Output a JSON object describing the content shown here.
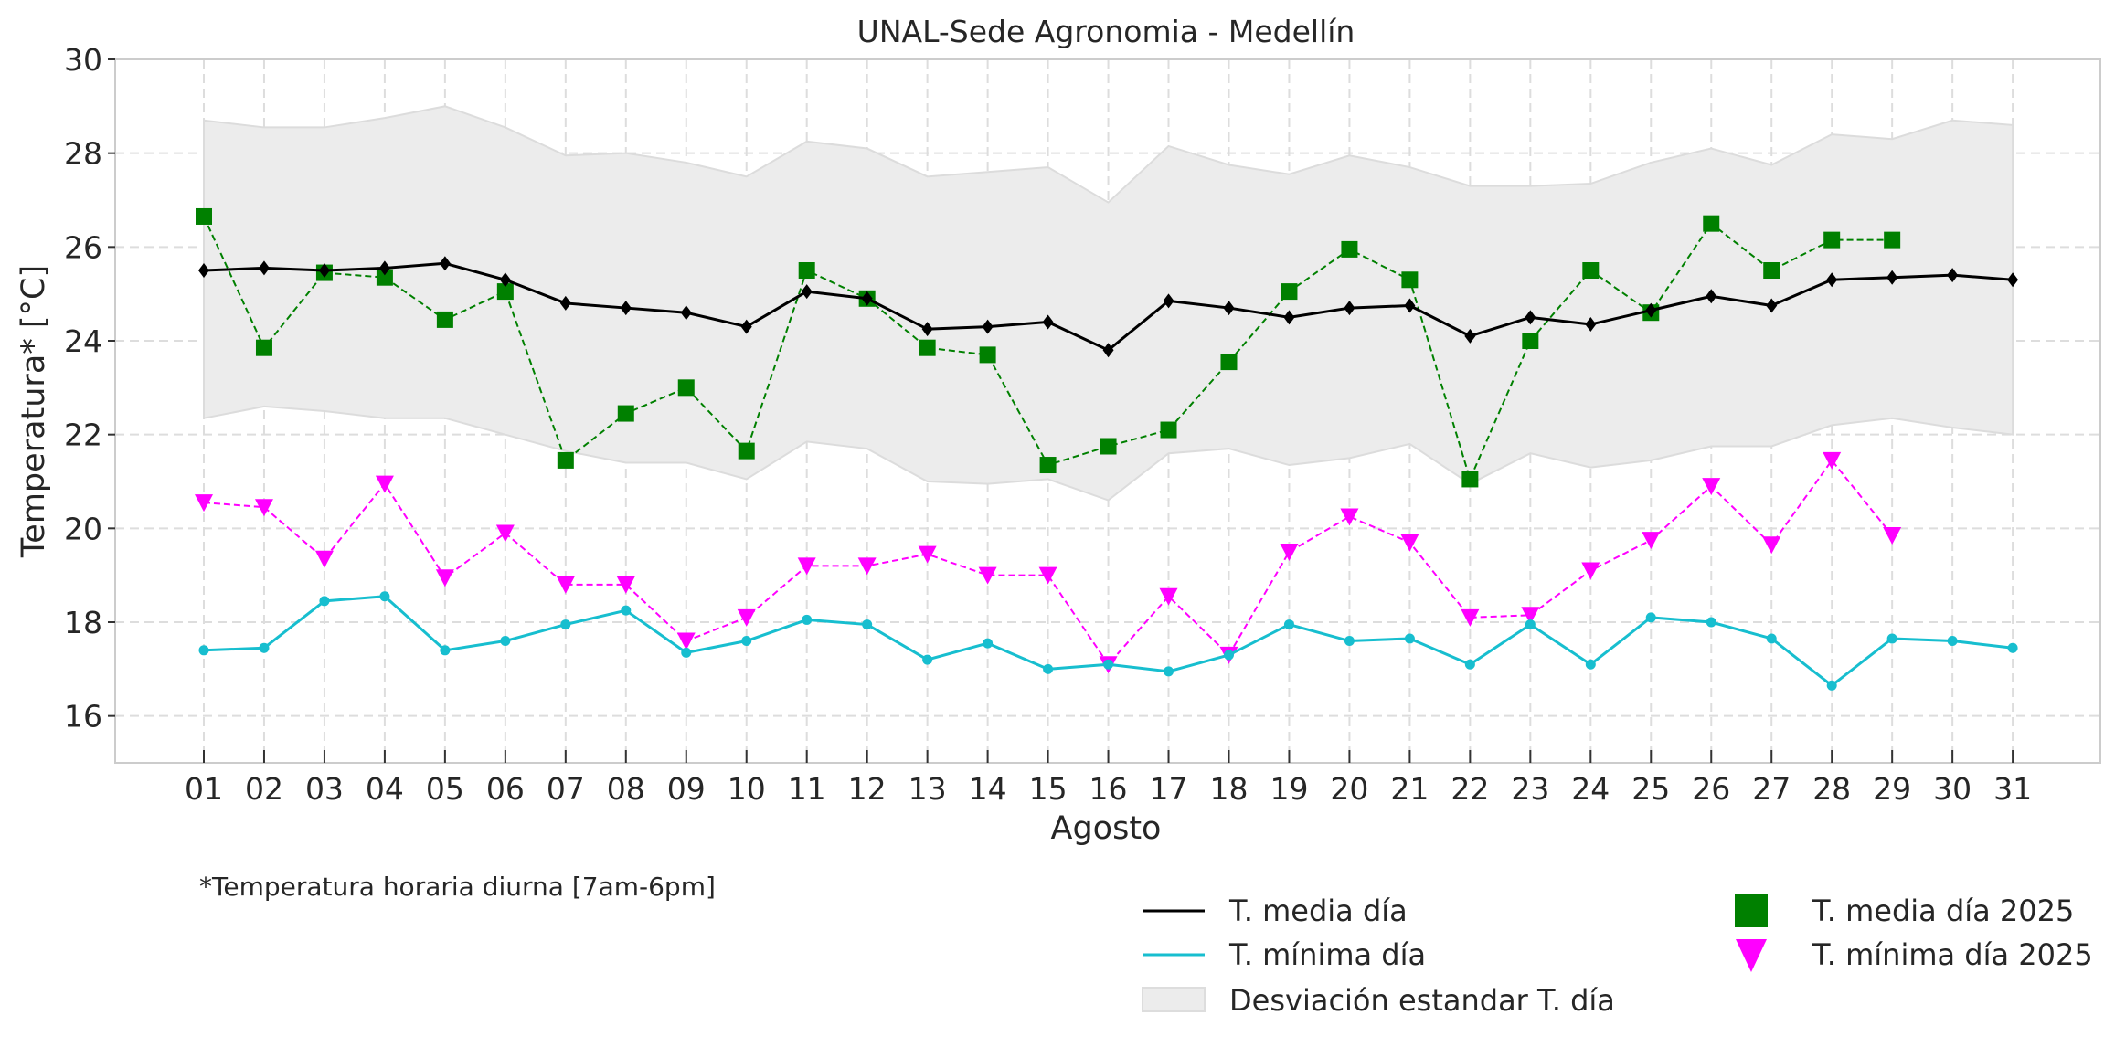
{
  "chart_data": {
    "type": "line",
    "title": "UNAL-Sede Agronomia - Medellín",
    "xlabel": "Agosto",
    "ylabel": "Temperatura* [°C]",
    "ylim": [
      15,
      30
    ],
    "yticks": [
      16,
      18,
      20,
      22,
      24,
      26,
      28,
      30
    ],
    "grid": true,
    "footnote": "*Temperatura horaria diurna [7am-6pm]",
    "categories": [
      "01",
      "02",
      "03",
      "04",
      "05",
      "06",
      "07",
      "08",
      "09",
      "10",
      "11",
      "12",
      "13",
      "14",
      "15",
      "16",
      "17",
      "18",
      "19",
      "20",
      "21",
      "22",
      "23",
      "24",
      "25",
      "26",
      "27",
      "28",
      "29",
      "30",
      "31"
    ],
    "band": {
      "name": "Desviación estandar T. día",
      "color": "#ececec",
      "upper": [
        28.7,
        28.55,
        28.55,
        28.75,
        29.0,
        28.55,
        27.95,
        28.0,
        27.8,
        27.5,
        28.25,
        28.1,
        27.5,
        27.6,
        27.7,
        26.95,
        28.15,
        27.75,
        27.55,
        27.95,
        27.7,
        27.3,
        27.3,
        27.35,
        27.8,
        28.1,
        27.75,
        28.4,
        28.3,
        28.7,
        28.6
      ],
      "lower": [
        22.35,
        22.6,
        22.5,
        22.35,
        22.35,
        22.0,
        21.65,
        21.4,
        21.4,
        21.05,
        21.85,
        21.7,
        21.0,
        20.95,
        21.05,
        20.6,
        21.6,
        21.7,
        21.35,
        21.5,
        21.8,
        20.95,
        21.6,
        21.3,
        21.45,
        21.75,
        21.75,
        22.2,
        22.35,
        22.15,
        22.0
      ]
    },
    "series": [
      {
        "name": "T. media día",
        "color": "#000000",
        "style": "solid",
        "marker": "diamond",
        "values": [
          25.5,
          25.55,
          25.5,
          25.55,
          25.65,
          25.3,
          24.8,
          24.7,
          24.6,
          24.3,
          25.05,
          24.9,
          24.25,
          24.3,
          24.4,
          23.8,
          24.85,
          24.7,
          24.5,
          24.7,
          24.75,
          24.1,
          24.5,
          24.35,
          24.65,
          24.95,
          24.75,
          25.3,
          25.35,
          25.4,
          25.3
        ]
      },
      {
        "name": "T. mínima día",
        "color": "#17becf",
        "style": "solid",
        "marker": "circle",
        "values": [
          17.4,
          17.45,
          18.45,
          18.55,
          17.4,
          17.6,
          17.95,
          18.25,
          17.35,
          17.6,
          18.05,
          17.95,
          17.2,
          17.55,
          17.0,
          17.1,
          16.95,
          17.3,
          17.95,
          17.6,
          17.65,
          17.1,
          17.95,
          17.1,
          18.1,
          18.0,
          17.65,
          16.65,
          17.65,
          17.6,
          17.45
        ]
      },
      {
        "name": "T. media día 2025",
        "color": "#008000",
        "style": "dashed",
        "marker": "square",
        "values": [
          26.65,
          23.85,
          25.45,
          25.35,
          24.45,
          25.05,
          21.45,
          22.45,
          23.0,
          21.65,
          25.5,
          24.9,
          23.85,
          23.7,
          21.35,
          21.75,
          22.1,
          23.55,
          25.05,
          25.95,
          25.3,
          21.05,
          24.0,
          25.5,
          24.6,
          26.5,
          25.5,
          26.15,
          26.15
        ]
      },
      {
        "name": "T. mínima día 2025",
        "color": "#ff00ff",
        "style": "dashed",
        "marker": "triangle-down",
        "values": [
          20.55,
          20.45,
          19.35,
          20.95,
          18.95,
          19.9,
          18.8,
          18.8,
          17.6,
          18.1,
          19.2,
          19.2,
          19.45,
          19.0,
          19.0,
          17.1,
          18.55,
          17.3,
          19.5,
          20.25,
          19.7,
          18.1,
          18.15,
          19.1,
          19.75,
          20.9,
          19.65,
          21.45,
          19.85
        ]
      }
    ],
    "legend": {
      "placement": "bottom-right",
      "entries": [
        {
          "label": "T. media día",
          "swatch": "line",
          "color": "#000000"
        },
        {
          "label": "T. mínima día",
          "swatch": "line",
          "color": "#17becf"
        },
        {
          "label": "Desviación estandar T. día",
          "swatch": "patch",
          "color": "#ececec"
        },
        {
          "label": "T. media día 2025",
          "swatch": "square",
          "color": "#008000"
        },
        {
          "label": "T. mínima día 2025",
          "swatch": "triangle-down",
          "color": "#ff00ff"
        }
      ]
    }
  }
}
